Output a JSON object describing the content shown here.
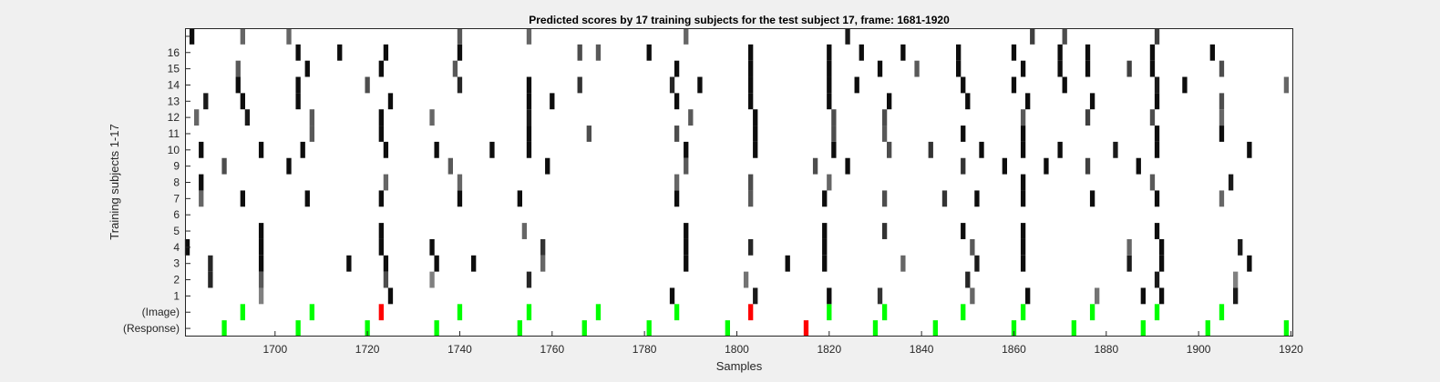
{
  "chart_data": {
    "type": "heatmap",
    "title": "Predicted scores by 17 training subjects for the test subject 17, frame: 1681-1920",
    "xlabel": "Samples",
    "ylabel": "Training subjects 1-17",
    "xlim": [
      1681,
      1920
    ],
    "x_ticks": [
      1700,
      1720,
      1740,
      1760,
      1780,
      1800,
      1820,
      1840,
      1860,
      1880,
      1900,
      1920
    ],
    "rows": [
      "(Response)",
      "(Image)",
      "1",
      "2",
      "3",
      "4",
      "5",
      "6",
      "7",
      "8",
      "9",
      "10",
      "11",
      "12",
      "13",
      "14",
      "15",
      "16",
      ""
    ],
    "colors": {
      "correct": "#00ff00",
      "incorrect": "#ff0000",
      "background": "#ffffff",
      "figure_bg": "#f0f0f0"
    },
    "response_events": [
      {
        "x": 1689,
        "correct": true
      },
      {
        "x": 1705,
        "correct": true
      },
      {
        "x": 1720,
        "correct": true
      },
      {
        "x": 1735,
        "correct": true
      },
      {
        "x": 1753,
        "correct": true
      },
      {
        "x": 1767,
        "correct": true
      },
      {
        "x": 1781,
        "correct": true
      },
      {
        "x": 1798,
        "correct": true
      },
      {
        "x": 1815,
        "correct": false
      },
      {
        "x": 1830,
        "correct": true
      },
      {
        "x": 1843,
        "correct": true
      },
      {
        "x": 1860,
        "correct": true
      },
      {
        "x": 1873,
        "correct": true
      },
      {
        "x": 1888,
        "correct": true
      },
      {
        "x": 1902,
        "correct": true
      },
      {
        "x": 1919,
        "correct": true
      }
    ],
    "image_events": [
      {
        "x": 1693,
        "correct": true
      },
      {
        "x": 1708,
        "correct": true
      },
      {
        "x": 1723,
        "correct": false
      },
      {
        "x": 1740,
        "correct": true
      },
      {
        "x": 1755,
        "correct": true
      },
      {
        "x": 1770,
        "correct": true
      },
      {
        "x": 1787,
        "correct": true
      },
      {
        "x": 1803,
        "correct": false
      },
      {
        "x": 1820,
        "correct": true
      },
      {
        "x": 1832,
        "correct": true
      },
      {
        "x": 1849,
        "correct": true
      },
      {
        "x": 1862,
        "correct": true
      },
      {
        "x": 1877,
        "correct": true
      },
      {
        "x": 1891,
        "correct": true
      },
      {
        "x": 1905,
        "correct": true
      }
    ],
    "subject_scores": [
      {
        "subject": 1,
        "cells": [
          [
            1697,
            0.5
          ],
          [
            1725,
            0.05
          ],
          [
            1786,
            0.05
          ],
          [
            1804,
            0.1
          ],
          [
            1820,
            0.05
          ],
          [
            1831,
            0.2
          ],
          [
            1851,
            0.4
          ],
          [
            1863,
            0.05
          ],
          [
            1878,
            0.45
          ],
          [
            1888,
            0.05
          ],
          [
            1892,
            0.05
          ],
          [
            1908,
            0.1
          ]
        ]
      },
      {
        "subject": 2,
        "cells": [
          [
            1686,
            0.15
          ],
          [
            1697,
            0.35
          ],
          [
            1724,
            0.3
          ],
          [
            1734,
            0.5
          ],
          [
            1755,
            0.15
          ],
          [
            1802,
            0.45
          ],
          [
            1850,
            0.15
          ],
          [
            1891,
            0.1
          ],
          [
            1908,
            0.5
          ]
        ]
      },
      {
        "subject": 3,
        "cells": [
          [
            1686,
            0.15
          ],
          [
            1697,
            0.05
          ],
          [
            1716,
            0.05
          ],
          [
            1724,
            0.05
          ],
          [
            1735,
            0.05
          ],
          [
            1743,
            0.05
          ],
          [
            1758,
            0.4
          ],
          [
            1789,
            0.05
          ],
          [
            1811,
            0.05
          ],
          [
            1819,
            0.05
          ],
          [
            1836,
            0.4
          ],
          [
            1852,
            0.1
          ],
          [
            1862,
            0.05
          ],
          [
            1885,
            0.1
          ],
          [
            1892,
            0.05
          ],
          [
            1911,
            0.05
          ]
        ]
      },
      {
        "subject": 4,
        "cells": [
          [
            1681,
            0.05
          ],
          [
            1697,
            0.05
          ],
          [
            1723,
            0.05
          ],
          [
            1734,
            0.05
          ],
          [
            1758,
            0.2
          ],
          [
            1789,
            0.05
          ],
          [
            1803,
            0.15
          ],
          [
            1819,
            0.05
          ],
          [
            1851,
            0.35
          ],
          [
            1862,
            0.05
          ],
          [
            1885,
            0.4
          ],
          [
            1892,
            0.05
          ],
          [
            1909,
            0.1
          ]
        ]
      },
      {
        "subject": 5,
        "cells": [
          [
            1697,
            0.05
          ],
          [
            1723,
            0.05
          ],
          [
            1754,
            0.4
          ],
          [
            1789,
            0.05
          ],
          [
            1819,
            0.05
          ],
          [
            1832,
            0.2
          ],
          [
            1849,
            0.05
          ],
          [
            1862,
            0.05
          ],
          [
            1891,
            0.05
          ]
        ]
      },
      {
        "subject": 7,
        "cells": [
          [
            1684,
            0.4
          ],
          [
            1693,
            0.05
          ],
          [
            1707,
            0.05
          ],
          [
            1723,
            0.05
          ],
          [
            1740,
            0.05
          ],
          [
            1753,
            0.05
          ],
          [
            1787,
            0.05
          ],
          [
            1803,
            0.35
          ],
          [
            1819,
            0.05
          ],
          [
            1832,
            0.3
          ],
          [
            1845,
            0.2
          ],
          [
            1852,
            0.05
          ],
          [
            1862,
            0.05
          ],
          [
            1877,
            0.05
          ],
          [
            1891,
            0.05
          ],
          [
            1905,
            0.4
          ]
        ]
      },
      {
        "subject": 8,
        "cells": [
          [
            1684,
            0.05
          ],
          [
            1724,
            0.4
          ],
          [
            1740,
            0.4
          ],
          [
            1787,
            0.4
          ],
          [
            1803,
            0.3
          ],
          [
            1820,
            0.4
          ],
          [
            1862,
            0.05
          ],
          [
            1890,
            0.35
          ],
          [
            1907,
            0.1
          ]
        ]
      },
      {
        "subject": 9,
        "cells": [
          [
            1689,
            0.3
          ],
          [
            1703,
            0.05
          ],
          [
            1738,
            0.35
          ],
          [
            1759,
            0.05
          ],
          [
            1789,
            0.35
          ],
          [
            1817,
            0.3
          ],
          [
            1824,
            0.05
          ],
          [
            1849,
            0.2
          ],
          [
            1858,
            0.05
          ],
          [
            1867,
            0.05
          ],
          [
            1876,
            0.25
          ],
          [
            1887,
            0.05
          ]
        ]
      },
      {
        "subject": 10,
        "cells": [
          [
            1684,
            0.05
          ],
          [
            1697,
            0.05
          ],
          [
            1706,
            0.05
          ],
          [
            1724,
            0.05
          ],
          [
            1735,
            0.05
          ],
          [
            1747,
            0.05
          ],
          [
            1755,
            0.05
          ],
          [
            1789,
            0.05
          ],
          [
            1804,
            0.05
          ],
          [
            1821,
            0.05
          ],
          [
            1833,
            0.3
          ],
          [
            1842,
            0.2
          ],
          [
            1853,
            0.05
          ],
          [
            1862,
            0.05
          ],
          [
            1870,
            0.05
          ],
          [
            1882,
            0.1
          ],
          [
            1891,
            0.05
          ],
          [
            1911,
            0.05
          ]
        ]
      },
      {
        "subject": 11,
        "cells": [
          [
            1708,
            0.35
          ],
          [
            1723,
            0.05
          ],
          [
            1755,
            0.05
          ],
          [
            1768,
            0.3
          ],
          [
            1787,
            0.3
          ],
          [
            1804,
            0.05
          ],
          [
            1821,
            0.3
          ],
          [
            1832,
            0.35
          ],
          [
            1849,
            0.05
          ],
          [
            1862,
            0.05
          ],
          [
            1891,
            0.05
          ],
          [
            1905,
            0.05
          ]
        ]
      },
      {
        "subject": 12,
        "cells": [
          [
            1683,
            0.4
          ],
          [
            1694,
            0.1
          ],
          [
            1708,
            0.35
          ],
          [
            1723,
            0.05
          ],
          [
            1734,
            0.4
          ],
          [
            1755,
            0.1
          ],
          [
            1790,
            0.35
          ],
          [
            1804,
            0.05
          ],
          [
            1821,
            0.3
          ],
          [
            1832,
            0.3
          ],
          [
            1862,
            0.35
          ],
          [
            1876,
            0.25
          ],
          [
            1890,
            0.3
          ],
          [
            1905,
            0.4
          ]
        ]
      },
      {
        "subject": 13,
        "cells": [
          [
            1685,
            0.1
          ],
          [
            1693,
            0.05
          ],
          [
            1705,
            0.05
          ],
          [
            1725,
            0.05
          ],
          [
            1755,
            0.05
          ],
          [
            1760,
            0.05
          ],
          [
            1787,
            0.05
          ],
          [
            1803,
            0.05
          ],
          [
            1820,
            0.05
          ],
          [
            1833,
            0.05
          ],
          [
            1850,
            0.05
          ],
          [
            1863,
            0.05
          ],
          [
            1877,
            0.05
          ],
          [
            1891,
            0.05
          ],
          [
            1905,
            0.3
          ]
        ]
      },
      {
        "subject": 14,
        "cells": [
          [
            1692,
            0.05
          ],
          [
            1705,
            0.05
          ],
          [
            1720,
            0.3
          ],
          [
            1740,
            0.15
          ],
          [
            1755,
            0.05
          ],
          [
            1766,
            0.2
          ],
          [
            1786,
            0.15
          ],
          [
            1792,
            0.05
          ],
          [
            1803,
            0.05
          ],
          [
            1820,
            0.05
          ],
          [
            1826,
            0.05
          ],
          [
            1849,
            0.05
          ],
          [
            1860,
            0.05
          ],
          [
            1871,
            0.05
          ],
          [
            1891,
            0.1
          ],
          [
            1897,
            0.05
          ],
          [
            1919,
            0.4
          ]
        ]
      },
      {
        "subject": 15,
        "cells": [
          [
            1692,
            0.35
          ],
          [
            1707,
            0.05
          ],
          [
            1723,
            0.05
          ],
          [
            1739,
            0.35
          ],
          [
            1787,
            0.05
          ],
          [
            1803,
            0.05
          ],
          [
            1820,
            0.05
          ],
          [
            1831,
            0.05
          ],
          [
            1839,
            0.35
          ],
          [
            1848,
            0.05
          ],
          [
            1862,
            0.05
          ],
          [
            1870,
            0.05
          ],
          [
            1876,
            0.05
          ],
          [
            1885,
            0.25
          ],
          [
            1890,
            0.05
          ],
          [
            1905,
            0.3
          ]
        ]
      },
      {
        "subject": 16,
        "cells": [
          [
            1705,
            0.05
          ],
          [
            1714,
            0.05
          ],
          [
            1724,
            0.05
          ],
          [
            1740,
            0.05
          ],
          [
            1766,
            0.3
          ],
          [
            1770,
            0.35
          ],
          [
            1781,
            0.05
          ],
          [
            1803,
            0.05
          ],
          [
            1820,
            0.05
          ],
          [
            1827,
            0.05
          ],
          [
            1836,
            0.05
          ],
          [
            1848,
            0.05
          ],
          [
            1860,
            0.05
          ],
          [
            1870,
            0.05
          ],
          [
            1876,
            0.05
          ],
          [
            1890,
            0.05
          ],
          [
            1903,
            0.05
          ]
        ]
      },
      {
        "subject": 17,
        "cells": [
          [
            1682,
            0.05
          ],
          [
            1693,
            0.4
          ],
          [
            1703,
            0.4
          ],
          [
            1740,
            0.35
          ],
          [
            1755,
            0.4
          ],
          [
            1789,
            0.4
          ],
          [
            1824,
            0.1
          ],
          [
            1864,
            0.25
          ],
          [
            1871,
            0.3
          ],
          [
            1891,
            0.25
          ]
        ]
      }
    ]
  }
}
